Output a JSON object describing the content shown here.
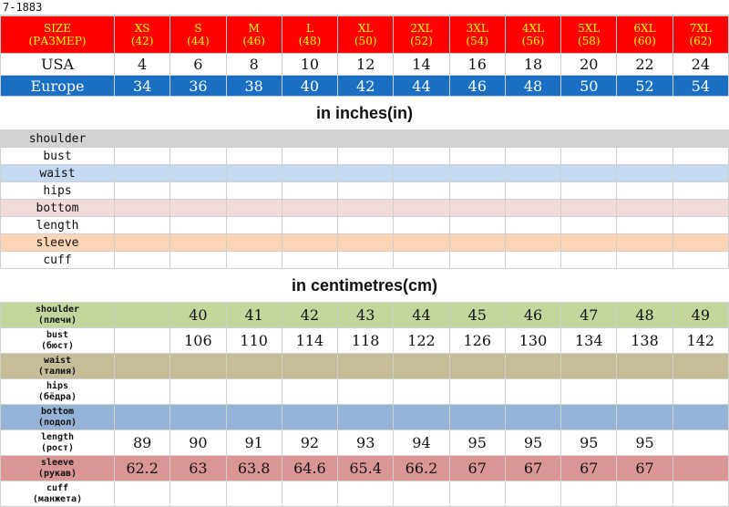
{
  "code": "7-1883",
  "header": {
    "label_en": "SIZE",
    "label_ru": "(РАЗМЕР)",
    "sizes": [
      "XS",
      "S",
      "M",
      "L",
      "XL",
      "2XL",
      "3XL",
      "4XL",
      "5XL",
      "6XL",
      "7XL"
    ],
    "ru_sizes": [
      "(42)",
      "(44)",
      "(46)",
      "(48)",
      "(50)",
      "(52)",
      "(54)",
      "(56)",
      "(58)",
      "(60)",
      "(62)"
    ]
  },
  "usa": {
    "label": "USA",
    "values": [
      "4",
      "6",
      "8",
      "10",
      "12",
      "14",
      "16",
      "18",
      "20",
      "22",
      "24"
    ]
  },
  "europe": {
    "label": "Europe",
    "values": [
      "34",
      "36",
      "38",
      "40",
      "42",
      "44",
      "46",
      "48",
      "50",
      "52",
      "54"
    ]
  },
  "inches": {
    "title": "in inches(in)",
    "rows": [
      {
        "label": "shoulder",
        "color": "#d3d3d3"
      },
      {
        "label": "bust",
        "color": "#ffffff"
      },
      {
        "label": "waist",
        "color": "#c5d9f1"
      },
      {
        "label": "hips",
        "color": "#ffffff"
      },
      {
        "label": "bottom",
        "color": "#f2dcdb"
      },
      {
        "label": "length",
        "color": "#ffffff"
      },
      {
        "label": "sleeve",
        "color": "#fcd5b4"
      },
      {
        "label": "cuff",
        "color": "#ffffff"
      }
    ]
  },
  "centimetres": {
    "title": "in centimetres(cm)",
    "rows": [
      {
        "label_en": "shoulder",
        "label_ru": "(плечи)",
        "color": "#c3d69b",
        "values": [
          "",
          "40",
          "41",
          "42",
          "43",
          "44",
          "45",
          "46",
          "47",
          "48",
          "49"
        ]
      },
      {
        "label_en": "bust",
        "label_ru": "(бюст)",
        "color": "#ffffff",
        "values": [
          "",
          "106",
          "110",
          "114",
          "118",
          "122",
          "126",
          "130",
          "134",
          "138",
          "142"
        ]
      },
      {
        "label_en": "waist",
        "label_ru": "(талия)",
        "color": "#c4bd97",
        "values": [
          "",
          "",
          "",
          "",
          "",
          "",
          "",
          "",
          "",
          "",
          ""
        ]
      },
      {
        "label_en": "hips",
        "label_ru": "(бёдра)",
        "color": "#ffffff",
        "values": [
          "",
          "",
          "",
          "",
          "",
          "",
          "",
          "",
          "",
          "",
          ""
        ]
      },
      {
        "label_en": "bottom",
        "label_ru": "(подол)",
        "color": "#95b3d7",
        "values": [
          "",
          "",
          "",
          "",
          "",
          "",
          "",
          "",
          "",
          "",
          ""
        ]
      },
      {
        "label_en": "length",
        "label_ru": "(рост)",
        "color": "#ffffff",
        "values": [
          "89",
          "90",
          "91",
          "92",
          "93",
          "94",
          "95",
          "95",
          "95",
          "95",
          ""
        ]
      },
      {
        "label_en": "sleeve",
        "label_ru": "(рукав)",
        "color": "#da9694",
        "values": [
          "62.2",
          "63",
          "63.8",
          "64.6",
          "65.4",
          "66.2",
          "67",
          "67",
          "67",
          "67",
          ""
        ]
      },
      {
        "label_en": "cuff",
        "label_ru": "(манжета)",
        "color": "#ffffff",
        "values": [
          "",
          "",
          "",
          "",
          "",
          "",
          "",
          "",
          "",
          "",
          ""
        ]
      }
    ]
  }
}
